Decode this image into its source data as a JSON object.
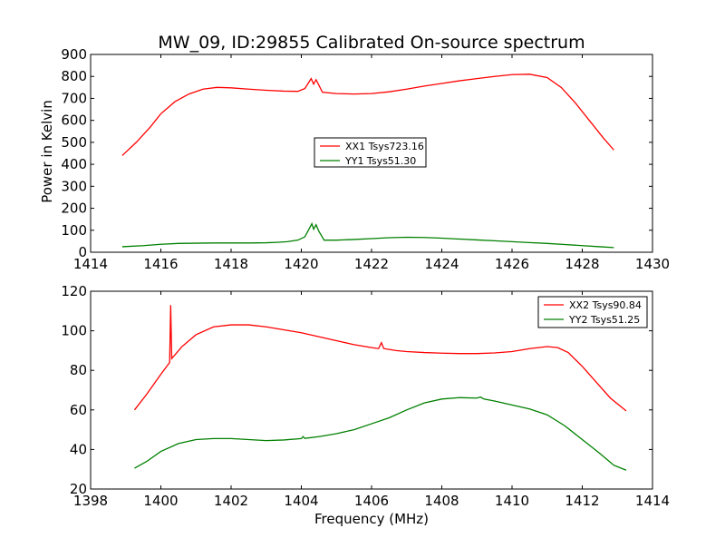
{
  "title": "MW_09, ID:29855 Calibrated On-source spectrum",
  "ylabel": "Power in Kelvin",
  "xlabel": "Frequency (MHz)",
  "chart_data": [
    {
      "type": "line",
      "xlim": [
        1414,
        1430
      ],
      "ylim": [
        0,
        900
      ],
      "xticks": [
        1414,
        1416,
        1418,
        1420,
        1422,
        1424,
        1426,
        1428,
        1430
      ],
      "yticks": [
        0,
        100,
        200,
        300,
        400,
        500,
        600,
        700,
        800,
        900
      ],
      "legend_position": "center",
      "series": [
        {
          "name": "XX1 Tsys723.16",
          "color": "#ff0000",
          "points": [
            [
              1414.9,
              440
            ],
            [
              1415.3,
              500
            ],
            [
              1415.7,
              570
            ],
            [
              1416.0,
              630
            ],
            [
              1416.4,
              685
            ],
            [
              1416.8,
              720
            ],
            [
              1417.2,
              742
            ],
            [
              1417.6,
              750
            ],
            [
              1418.0,
              748
            ],
            [
              1418.5,
              742
            ],
            [
              1419.0,
              737
            ],
            [
              1419.5,
              733
            ],
            [
              1419.9,
              732
            ],
            [
              1420.1,
              745
            ],
            [
              1420.2,
              770
            ],
            [
              1420.28,
              790
            ],
            [
              1420.35,
              765
            ],
            [
              1420.42,
              785
            ],
            [
              1420.5,
              760
            ],
            [
              1420.6,
              728
            ],
            [
              1421.0,
              722
            ],
            [
              1421.5,
              720
            ],
            [
              1422.0,
              722
            ],
            [
              1422.5,
              730
            ],
            [
              1423.0,
              742
            ],
            [
              1423.5,
              756
            ],
            [
              1424.0,
              768
            ],
            [
              1424.5,
              780
            ],
            [
              1425.0,
              790
            ],
            [
              1425.5,
              800
            ],
            [
              1426.0,
              808
            ],
            [
              1426.5,
              810
            ],
            [
              1427.0,
              795
            ],
            [
              1427.4,
              750
            ],
            [
              1427.8,
              680
            ],
            [
              1428.2,
              600
            ],
            [
              1428.6,
              520
            ],
            [
              1428.9,
              465
            ]
          ]
        },
        {
          "name": "YY1 Tsys51.30",
          "color": "#008000",
          "points": [
            [
              1414.9,
              25
            ],
            [
              1415.5,
              30
            ],
            [
              1416.0,
              36
            ],
            [
              1416.5,
              40
            ],
            [
              1417.0,
              41
            ],
            [
              1417.5,
              42
            ],
            [
              1418.0,
              42
            ],
            [
              1418.5,
              42
            ],
            [
              1419.0,
              43
            ],
            [
              1419.3,
              45
            ],
            [
              1419.6,
              48
            ],
            [
              1419.9,
              55
            ],
            [
              1420.1,
              70
            ],
            [
              1420.2,
              100
            ],
            [
              1420.3,
              130
            ],
            [
              1420.35,
              105
            ],
            [
              1420.42,
              125
            ],
            [
              1420.5,
              95
            ],
            [
              1420.65,
              55
            ],
            [
              1421.0,
              55
            ],
            [
              1421.5,
              58
            ],
            [
              1422.0,
              62
            ],
            [
              1422.5,
              66
            ],
            [
              1423.0,
              68
            ],
            [
              1423.5,
              67
            ],
            [
              1424.0,
              64
            ],
            [
              1424.5,
              60
            ],
            [
              1425.0,
              56
            ],
            [
              1425.5,
              52
            ],
            [
              1426.0,
              48
            ],
            [
              1426.5,
              44
            ],
            [
              1427.0,
              40
            ],
            [
              1427.5,
              35
            ],
            [
              1428.0,
              30
            ],
            [
              1428.5,
              25
            ],
            [
              1428.9,
              21
            ]
          ]
        }
      ]
    },
    {
      "type": "line",
      "xlim": [
        1398,
        1414
      ],
      "ylim": [
        20,
        120
      ],
      "xticks": [
        1398,
        1400,
        1402,
        1404,
        1406,
        1408,
        1410,
        1412,
        1414
      ],
      "yticks": [
        20,
        40,
        60,
        80,
        100,
        120
      ],
      "legend_position": "top-right",
      "series": [
        {
          "name": "XX2 Tsys90.84",
          "color": "#ff0000",
          "points": [
            [
              1399.25,
              60
            ],
            [
              1399.6,
              68
            ],
            [
              1400.0,
              78
            ],
            [
              1400.25,
              84
            ],
            [
              1400.28,
              113
            ],
            [
              1400.31,
              86
            ],
            [
              1400.6,
              92
            ],
            [
              1401.0,
              98
            ],
            [
              1401.5,
              102
            ],
            [
              1402.0,
              103
            ],
            [
              1402.5,
              103
            ],
            [
              1403.0,
              102
            ],
            [
              1403.5,
              100.5
            ],
            [
              1404.0,
              99
            ],
            [
              1404.5,
              97
            ],
            [
              1405.0,
              95
            ],
            [
              1405.5,
              93
            ],
            [
              1406.0,
              91.5
            ],
            [
              1406.2,
              91
            ],
            [
              1406.28,
              94
            ],
            [
              1406.35,
              91
            ],
            [
              1406.7,
              90
            ],
            [
              1407.0,
              89.5
            ],
            [
              1407.5,
              89
            ],
            [
              1408.0,
              88.7
            ],
            [
              1408.5,
              88.5
            ],
            [
              1409.0,
              88.5
            ],
            [
              1409.5,
              88.8
            ],
            [
              1410.0,
              89.5
            ],
            [
              1410.5,
              91
            ],
            [
              1411.0,
              92
            ],
            [
              1411.3,
              91.5
            ],
            [
              1411.6,
              89
            ],
            [
              1412.0,
              82
            ],
            [
              1412.4,
              74
            ],
            [
              1412.8,
              66
            ],
            [
              1413.25,
              59.5
            ]
          ]
        },
        {
          "name": "YY2 Tsys51.25",
          "color": "#008000",
          "points": [
            [
              1399.25,
              30.5
            ],
            [
              1399.6,
              34
            ],
            [
              1400.0,
              39
            ],
            [
              1400.5,
              43
            ],
            [
              1401.0,
              45
            ],
            [
              1401.5,
              45.5
            ],
            [
              1402.0,
              45.5
            ],
            [
              1402.5,
              45
            ],
            [
              1403.0,
              44.5
            ],
            [
              1403.5,
              44.8
            ],
            [
              1404.0,
              45.5
            ],
            [
              1404.05,
              46.5
            ],
            [
              1404.1,
              45.6
            ],
            [
              1404.5,
              46.5
            ],
            [
              1405.0,
              48
            ],
            [
              1405.5,
              50
            ],
            [
              1406.0,
              53
            ],
            [
              1406.5,
              56
            ],
            [
              1407.0,
              60
            ],
            [
              1407.5,
              63.5
            ],
            [
              1408.0,
              65.5
            ],
            [
              1408.5,
              66.2
            ],
            [
              1409.0,
              66
            ],
            [
              1409.1,
              66.5
            ],
            [
              1409.2,
              65.5
            ],
            [
              1409.5,
              64.5
            ],
            [
              1410.0,
              62.5
            ],
            [
              1410.5,
              60.5
            ],
            [
              1411.0,
              57.5
            ],
            [
              1411.5,
              52
            ],
            [
              1412.0,
              45
            ],
            [
              1412.5,
              38
            ],
            [
              1412.9,
              32
            ],
            [
              1413.25,
              29.5
            ]
          ]
        }
      ]
    }
  ]
}
